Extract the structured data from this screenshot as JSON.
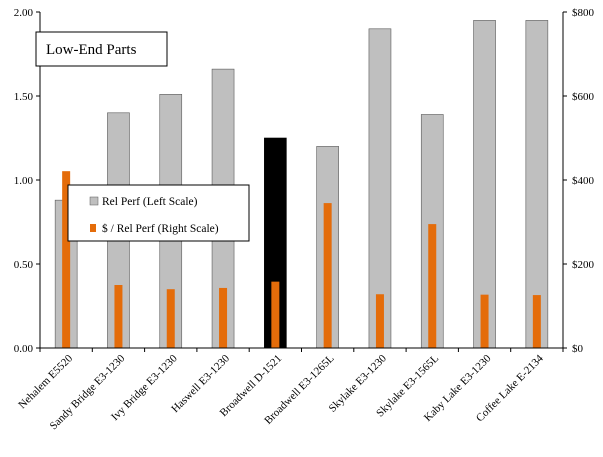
{
  "chart_data": {
    "type": "bar",
    "title": "Low-End Parts",
    "categories": [
      "Nehalem E5520",
      "Sandy Bridge E3-1230",
      "Ivy Bridge E3-1230",
      "Haswell E3-1230",
      "Broadwell D-1521",
      "Broadwell E3-1265L",
      "Skylake E3-1230",
      "Skylake E3-1565L",
      "Kaby Lake E3-1230",
      "Coffee Lake E-2134"
    ],
    "series": [
      {
        "name": "Rel Perf (Left Scale)",
        "axis": "left",
        "color": "#bfbfbf",
        "highlight": {
          "index": 4,
          "color": "#000000"
        },
        "values": [
          0.88,
          1.4,
          1.51,
          1.66,
          1.25,
          1.2,
          1.9,
          1.39,
          1.95,
          1.95
        ]
      },
      {
        "name": "$ / Rel Perf (Right Scale)",
        "axis": "right",
        "color": "#e46c0a",
        "values": [
          421,
          150,
          140,
          143,
          158,
          345,
          128,
          295,
          127,
          126
        ]
      }
    ],
    "y_left": {
      "range": [
        0,
        2
      ],
      "ticks": [
        "0.00",
        "0.50",
        "1.00",
        "1.50",
        "2.00"
      ]
    },
    "y_right": {
      "range": [
        0,
        800
      ],
      "ticks": [
        "$0",
        "$200",
        "$400",
        "$600",
        "$800"
      ]
    },
    "grid": false,
    "legend_position": "center-left"
  }
}
